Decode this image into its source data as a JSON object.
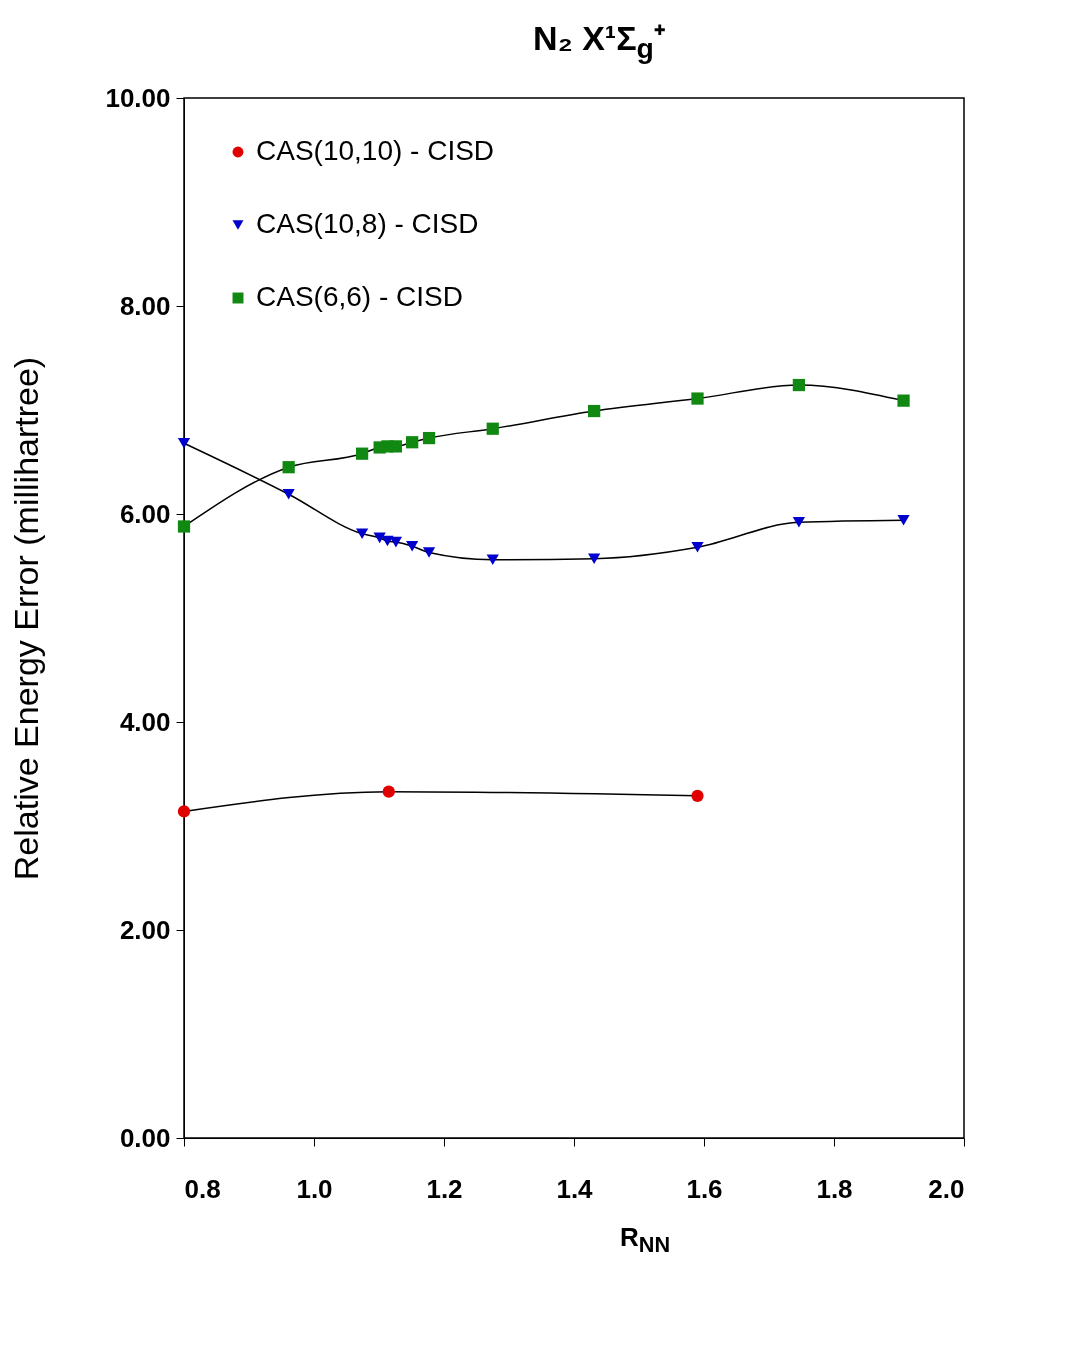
{
  "chart_data": {
    "type": "line",
    "title": "N₂ X¹Σ$_{g}$⁺",
    "xlabel": "R$_{NN}$",
    "ylabel": "Relative Energy Error (millihartree)",
    "xlim": [
      0.8,
      2.0
    ],
    "xticks": [
      0.8,
      {
        "value": 1,
        "label": "1.0"
      },
      1.2,
      1.4,
      1.6,
      1.8,
      {
        "value": 2,
        "label": "2.0"
      }
    ],
    "ylim": [
      0,
      10
    ],
    "yticks": [
      {
        "value": 0,
        "label": "0.00"
      },
      {
        "value": 2,
        "label": "2.00"
      },
      {
        "value": 4,
        "label": "4.00"
      },
      {
        "value": 6,
        "label": "6.00"
      },
      {
        "value": 8,
        "label": "8.00"
      },
      {
        "value": 10,
        "label": "10.00"
      }
    ],
    "grid": false,
    "legend": "top left",
    "line_style": "solid",
    "series": [
      {
        "name": "CAS(10,10) - CISD",
        "color": "#e00000",
        "marker": "circle",
        "x": [
          0.8,
          1.115,
          1.59
        ],
        "values": [
          3.14,
          3.33,
          3.29
        ]
      },
      {
        "name": "CAS(10,8) - CISD",
        "color": "#0000cc",
        "marker": "triangle",
        "x": [
          0.8,
          0.961,
          1.074,
          1.101,
          1.113,
          1.126,
          1.151,
          1.177,
          1.275,
          1.431,
          1.59,
          1.746,
          1.907
        ],
        "values": [
          6.68,
          6.19,
          5.81,
          5.77,
          5.74,
          5.73,
          5.69,
          5.63,
          5.56,
          5.57,
          5.68,
          5.92,
          5.94
        ]
      },
      {
        "name": "CAS(6,6) - CISD",
        "color": "#118811",
        "marker": "square",
        "x": [
          0.8,
          0.961,
          1.074,
          1.101,
          1.113,
          1.126,
          1.151,
          1.177,
          1.275,
          1.431,
          1.59,
          1.746,
          1.907
        ],
        "values": [
          5.88,
          6.45,
          6.58,
          6.64,
          6.65,
          6.65,
          6.69,
          6.73,
          6.82,
          6.99,
          7.11,
          7.24,
          7.09
        ]
      }
    ]
  }
}
